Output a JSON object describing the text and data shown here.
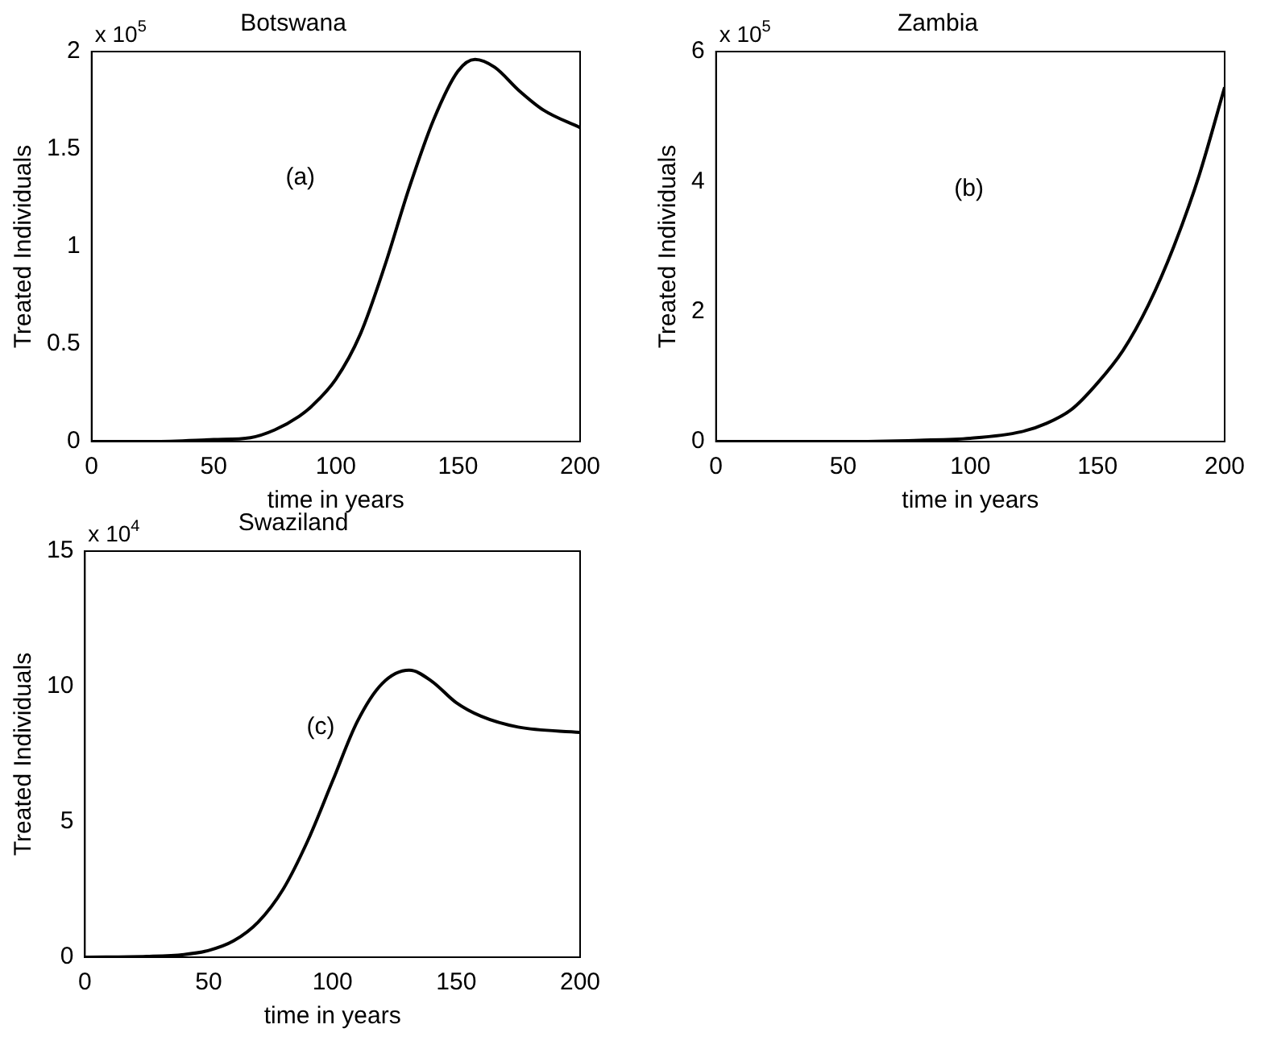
{
  "chart_data": [
    {
      "type": "line",
      "title": "Botswana",
      "xlabel": "time in years",
      "ylabel": "Treated Individuals",
      "annotations": [
        "x 10$^{5}$",
        "(a)"
      ],
      "xlim": [
        0,
        200
      ],
      "xticks": [
        0,
        50,
        100,
        150,
        200
      ],
      "ylim": [
        0,
        2
      ],
      "yticks": [
        0,
        0.5,
        1,
        1.5,
        2
      ],
      "grid": false,
      "marker": "none",
      "line_style": "solid",
      "series": [
        {
          "color": "#000000",
          "x": [
            0,
            25,
            50,
            65,
            75,
            85,
            90,
            100,
            110,
            120,
            130,
            140,
            150,
            157,
            165,
            175,
            185,
            200
          ],
          "values": [
            0,
            0,
            0.01,
            0.02,
            0.06,
            0.13,
            0.18,
            0.32,
            0.55,
            0.9,
            1.3,
            1.65,
            1.9,
            1.96,
            1.92,
            1.8,
            1.7,
            1.61
          ]
        }
      ]
    },
    {
      "type": "line",
      "title": "Zambia",
      "xlabel": "time in years",
      "ylabel": "Treated Individuals",
      "annotations": [
        "x 10$^{5}$",
        "(b)"
      ],
      "xlim": [
        0,
        200
      ],
      "xticks": [
        0,
        50,
        100,
        150,
        200
      ],
      "ylim": [
        0,
        6
      ],
      "yticks": [
        0,
        2,
        4,
        6
      ],
      "grid": false,
      "marker": "none",
      "line_style": "solid",
      "series": [
        {
          "color": "#000000",
          "x": [
            0,
            50,
            80,
            100,
            120,
            130,
            140,
            150,
            160,
            170,
            180,
            190,
            200
          ],
          "values": [
            0,
            0,
            0.02,
            0.05,
            0.15,
            0.28,
            0.5,
            0.9,
            1.4,
            2.1,
            3.0,
            4.1,
            5.45
          ]
        }
      ]
    },
    {
      "type": "line",
      "title": "Swaziland",
      "xlabel": "time in years",
      "ylabel": "Treated Individuals",
      "annotations": [
        "x 10$^{4}$",
        "(c)"
      ],
      "xlim": [
        0,
        200
      ],
      "xticks": [
        0,
        50,
        100,
        150,
        200
      ],
      "ylim": [
        0,
        15
      ],
      "yticks": [
        0,
        5,
        10,
        15
      ],
      "grid": false,
      "marker": "none",
      "line_style": "solid",
      "series": [
        {
          "color": "#000000",
          "x": [
            0,
            25,
            40,
            50,
            60,
            70,
            80,
            90,
            100,
            110,
            120,
            131,
            140,
            150,
            160,
            175,
            200
          ],
          "values": [
            0,
            0.03,
            0.1,
            0.25,
            0.6,
            1.3,
            2.5,
            4.3,
            6.5,
            8.7,
            10.1,
            10.6,
            10.2,
            9.4,
            8.9,
            8.5,
            8.3
          ]
        }
      ]
    }
  ]
}
